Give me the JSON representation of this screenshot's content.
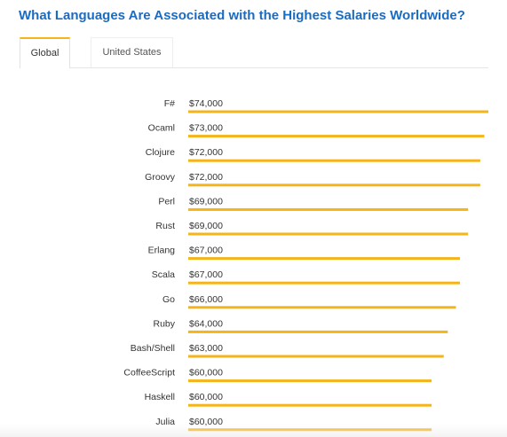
{
  "title": "What Languages Are Associated with the Highest Salaries Worldwide?",
  "tabs": [
    {
      "label": "Global",
      "active": true
    },
    {
      "label": "United States",
      "active": false
    }
  ],
  "colors": {
    "bar": "#f4b41a",
    "title": "#1a6bc2"
  },
  "chart_data": {
    "type": "bar",
    "orientation": "horizontal",
    "categories": [
      "F#",
      "Ocaml",
      "Clojure",
      "Groovy",
      "Perl",
      "Rust",
      "Erlang",
      "Scala",
      "Go",
      "Ruby",
      "Bash/Shell",
      "CoffeeScript",
      "Haskell",
      "Julia"
    ],
    "values": [
      74000,
      73000,
      72000,
      72000,
      69000,
      69000,
      67000,
      67000,
      66000,
      64000,
      63000,
      60000,
      60000,
      60000
    ],
    "value_labels": [
      "$74,000",
      "$73,000",
      "$72,000",
      "$72,000",
      "$69,000",
      "$69,000",
      "$67,000",
      "$67,000",
      "$66,000",
      "$64,000",
      "$63,000",
      "$60,000",
      "$60,000",
      "$60,000"
    ],
    "title": "What Languages Are Associated with the Highest Salaries Worldwide?",
    "xlabel": "",
    "ylabel": "",
    "xlim": [
      0,
      74000
    ],
    "grid": false,
    "legend": "none"
  }
}
